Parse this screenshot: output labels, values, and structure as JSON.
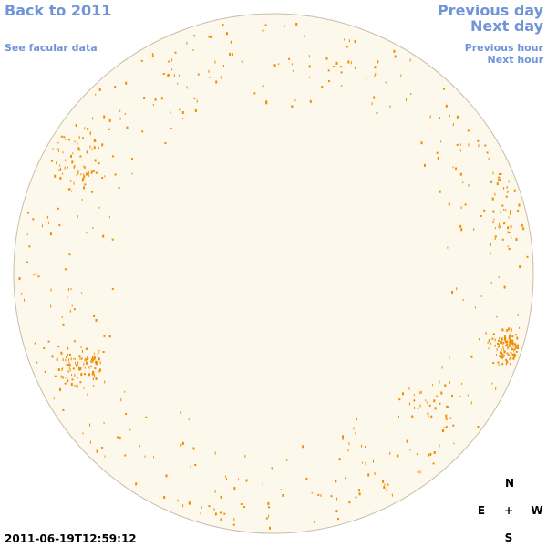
{
  "header": {
    "back_link": "Back to 2011",
    "facular_link": "See facular data",
    "previous_day": "Previous day",
    "next_day": "Next day",
    "previous_hour": "Previous hour",
    "next_hour": "Next hour"
  },
  "timestamp": "2011-06-19T12:59:12",
  "compass": {
    "north": "N",
    "east": "E",
    "center": "+",
    "west": "W",
    "south": "S"
  }
}
